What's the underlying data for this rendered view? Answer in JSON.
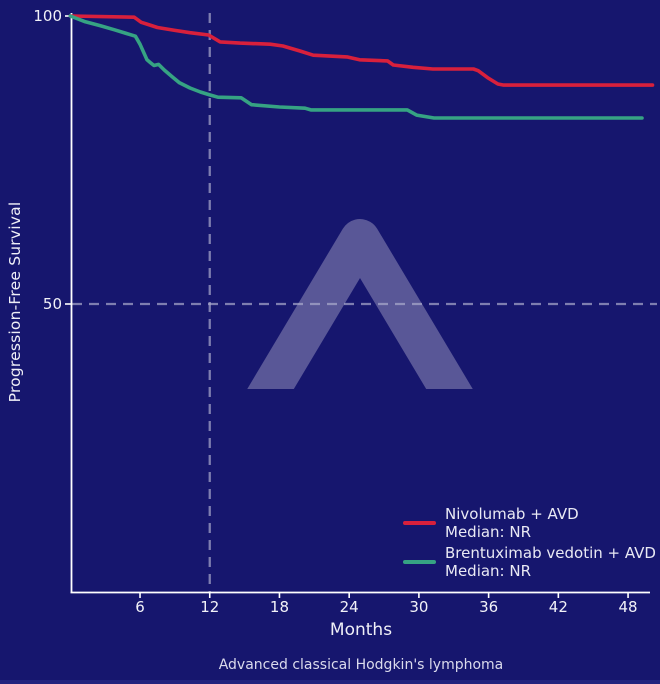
{
  "figure": {
    "background_color": "#16166E",
    "bottom_strip_color": "#23237E",
    "caption": "Advanced classical Hodgkin's lymphoma"
  },
  "chart_data": {
    "type": "line",
    "subtype": "kaplan-meier-survival-curve",
    "title": "",
    "xlabel": "Months",
    "ylabel": "Progression-Free Survival",
    "x_ticks": [
      6,
      12,
      18,
      24,
      30,
      36,
      42,
      48
    ],
    "y_ticks": [
      50,
      100
    ],
    "xlim": [
      0,
      50.5
    ],
    "ylim": [
      0,
      102
    ],
    "grid": false,
    "legend_position": "lower right",
    "axis_color": "#FFFFFF",
    "tick_label_color": "#F2F2F8",
    "watermark_icon": "caret-logo",
    "reference_lines": [
      {
        "orientation": "vertical",
        "x": 12,
        "style": "dashed",
        "color": "#ABABCC"
      },
      {
        "orientation": "horizontal",
        "y": 50,
        "style": "dashed",
        "color": "#ABABCC"
      }
    ],
    "series": [
      {
        "name": "Nivolumab + AVD",
        "median": "Median: NR",
        "color": "#D8203C",
        "points": [
          [
            0,
            100
          ],
          [
            5.5,
            99.8
          ],
          [
            6.1,
            98.9
          ],
          [
            6.6,
            98.6
          ],
          [
            7.5,
            98.0
          ],
          [
            9.0,
            97.5
          ],
          [
            10.3,
            97.1
          ],
          [
            11.9,
            96.7
          ],
          [
            12.9,
            95.5
          ],
          [
            14.6,
            95.3
          ],
          [
            17.2,
            95.1
          ],
          [
            18.3,
            94.8
          ],
          [
            19.8,
            93.9
          ],
          [
            20.9,
            93.2
          ],
          [
            23.8,
            92.9
          ],
          [
            24.9,
            92.4
          ],
          [
            27.3,
            92.2
          ],
          [
            27.8,
            91.5
          ],
          [
            29.5,
            91.1
          ],
          [
            31.2,
            90.8
          ],
          [
            34.7,
            90.8
          ],
          [
            35.1,
            90.5
          ],
          [
            35.9,
            89.3
          ],
          [
            36.8,
            88.2
          ],
          [
            37.3,
            88.0
          ],
          [
            50.1,
            88.0
          ]
        ]
      },
      {
        "name": "Brentuximab vedotin + AVD",
        "median": "Median: NR",
        "color": "#36A383",
        "points": [
          [
            0,
            100
          ],
          [
            1.3,
            99.0
          ],
          [
            2.6,
            98.3
          ],
          [
            3.8,
            97.6
          ],
          [
            5.6,
            96.5
          ],
          [
            6.0,
            95.1
          ],
          [
            6.6,
            92.4
          ],
          [
            6.9,
            91.9
          ],
          [
            7.2,
            91.4
          ],
          [
            7.6,
            91.6
          ],
          [
            8.1,
            90.6
          ],
          [
            8.8,
            89.4
          ],
          [
            9.4,
            88.4
          ],
          [
            10.3,
            87.5
          ],
          [
            11.2,
            86.8
          ],
          [
            12.0,
            86.3
          ],
          [
            12.7,
            85.9
          ],
          [
            14.7,
            85.8
          ],
          [
            15.6,
            84.6
          ],
          [
            18.0,
            84.2
          ],
          [
            20.2,
            84.0
          ],
          [
            20.7,
            83.7
          ],
          [
            29.0,
            83.7
          ],
          [
            29.8,
            82.8
          ],
          [
            31.3,
            82.3
          ],
          [
            49.2,
            82.3
          ]
        ]
      }
    ]
  }
}
